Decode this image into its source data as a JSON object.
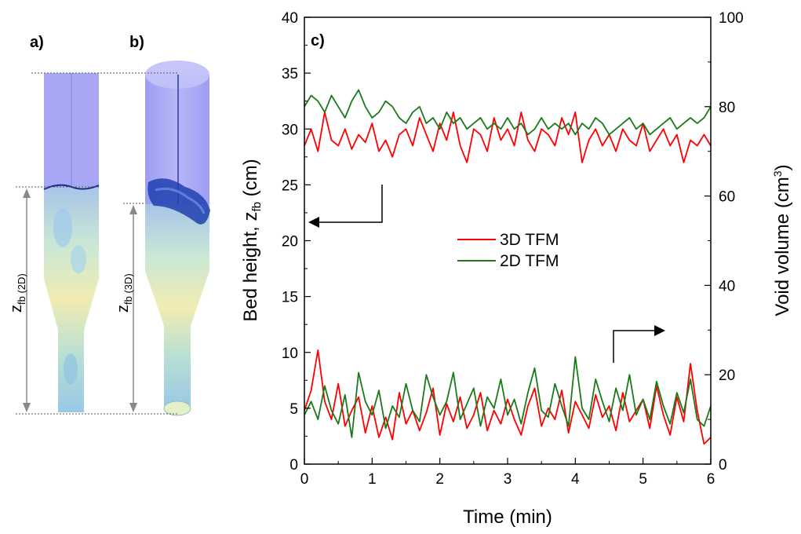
{
  "panels": {
    "a_label": "a)",
    "b_label": "b)",
    "c_label": "c)",
    "zfb_2d_main": "z",
    "zfb_2d_sub": "fb (2D)",
    "zfb_3d_main": "z",
    "zfb_3d_sub": "fb (3D)"
  },
  "chart_data": {
    "type": "line",
    "x_label": "Time  (min)",
    "y_left_label": "Bed height, z",
    "y_left_label_sub": "fb",
    "y_left_label_unit": " (cm)",
    "y_right_label": "Void volume (cm",
    "y_right_label_sup": "3",
    "y_right_label_end": ")",
    "xlim": [
      0,
      6
    ],
    "ylim_left": [
      0,
      40
    ],
    "ylim_right": [
      0,
      100
    ],
    "x_ticks": [
      "0",
      "1",
      "2",
      "3",
      "4",
      "5",
      "6"
    ],
    "y_left_ticks": [
      "0",
      "5",
      "10",
      "15",
      "20",
      "25",
      "30",
      "35",
      "40"
    ],
    "y_right_ticks": [
      "0",
      "20",
      "40",
      "60",
      "80",
      "100"
    ],
    "legend": [
      "3D TFM",
      "2D TFM"
    ],
    "colors": {
      "3D TFM": "#ff0000",
      "2D TFM": "#1a7a1a"
    },
    "series": [
      {
        "name": "3D TFM",
        "axis": "left",
        "group": "bed_height",
        "x": [
          0.0,
          0.1,
          0.2,
          0.3,
          0.4,
          0.5,
          0.6,
          0.7,
          0.8,
          0.9,
          1.0,
          1.1,
          1.2,
          1.3,
          1.4,
          1.5,
          1.6,
          1.7,
          1.8,
          1.9,
          2.0,
          2.1,
          2.2,
          2.3,
          2.4,
          2.5,
          2.6,
          2.7,
          2.8,
          2.9,
          3.0,
          3.1,
          3.2,
          3.3,
          3.4,
          3.5,
          3.6,
          3.7,
          3.8,
          3.9,
          4.0,
          4.1,
          4.2,
          4.3,
          4.4,
          4.5,
          4.6,
          4.7,
          4.8,
          4.9,
          5.0,
          5.1,
          5.2,
          5.3,
          5.4,
          5.5,
          5.6,
          5.7,
          5.8,
          5.9,
          6.0
        ],
        "values": [
          28.5,
          30.0,
          28.0,
          31.5,
          29.0,
          28.5,
          30.0,
          28.2,
          29.5,
          28.8,
          30.5,
          28.0,
          29.0,
          27.5,
          29.5,
          30.0,
          28.5,
          31.0,
          29.5,
          28.0,
          30.5,
          29.0,
          31.5,
          28.5,
          27.0,
          30.0,
          29.5,
          28.0,
          31.0,
          29.0,
          30.0,
          28.5,
          31.5,
          29.0,
          28.0,
          30.0,
          29.5,
          28.5,
          31.0,
          29.5,
          31.5,
          27.0,
          29.0,
          30.0,
          28.5,
          29.5,
          28.0,
          30.0,
          29.0,
          28.5,
          30.5,
          28.0,
          29.0,
          30.0,
          28.5,
          29.5,
          27.0,
          29.0,
          28.5,
          29.5,
          28.5
        ]
      },
      {
        "name": "2D TFM",
        "axis": "left",
        "group": "bed_height",
        "x": [
          0.0,
          0.1,
          0.2,
          0.3,
          0.4,
          0.5,
          0.6,
          0.7,
          0.8,
          0.9,
          1.0,
          1.1,
          1.2,
          1.3,
          1.4,
          1.5,
          1.6,
          1.7,
          1.8,
          1.9,
          2.0,
          2.1,
          2.2,
          2.3,
          2.4,
          2.5,
          2.6,
          2.7,
          2.8,
          2.9,
          3.0,
          3.1,
          3.2,
          3.3,
          3.4,
          3.5,
          3.6,
          3.7,
          3.8,
          3.9,
          4.0,
          4.1,
          4.2,
          4.3,
          4.4,
          4.5,
          4.6,
          4.7,
          4.8,
          4.9,
          5.0,
          5.1,
          5.2,
          5.3,
          5.4,
          5.5,
          5.6,
          5.7,
          5.8,
          5.9,
          6.0
        ],
        "values": [
          32.0,
          33.0,
          32.5,
          31.5,
          33.0,
          32.0,
          31.0,
          32.5,
          33.5,
          32.0,
          31.0,
          31.5,
          32.5,
          32.0,
          31.0,
          30.5,
          31.5,
          32.0,
          30.5,
          31.0,
          30.0,
          31.5,
          30.5,
          31.0,
          30.0,
          30.5,
          31.0,
          30.0,
          30.5,
          30.0,
          31.0,
          30.0,
          30.5,
          29.5,
          30.0,
          31.0,
          30.0,
          30.5,
          30.0,
          30.5,
          29.5,
          30.5,
          30.0,
          31.0,
          30.5,
          29.5,
          30.0,
          30.5,
          31.0,
          30.0,
          30.5,
          29.5,
          30.0,
          30.5,
          31.0,
          30.0,
          30.5,
          31.0,
          30.5,
          31.0,
          32.0
        ]
      },
      {
        "name": "3D TFM",
        "axis": "right",
        "group": "void_volume",
        "x": [
          0.0,
          0.1,
          0.2,
          0.3,
          0.4,
          0.5,
          0.6,
          0.7,
          0.8,
          0.9,
          1.0,
          1.1,
          1.2,
          1.3,
          1.4,
          1.5,
          1.6,
          1.7,
          1.8,
          1.9,
          2.0,
          2.1,
          2.2,
          2.3,
          2.4,
          2.5,
          2.6,
          2.7,
          2.8,
          2.9,
          3.0,
          3.1,
          3.2,
          3.3,
          3.4,
          3.5,
          3.6,
          3.7,
          3.8,
          3.9,
          4.0,
          4.1,
          4.2,
          4.3,
          4.4,
          4.5,
          4.6,
          4.7,
          4.8,
          4.9,
          5.0,
          5.1,
          5.2,
          5.3,
          5.4,
          5.5,
          5.6,
          5.7,
          5.8,
          5.9,
          6.0
        ],
        "values": [
          12.0,
          16.5,
          25.5,
          14.0,
          10.0,
          18.0,
          8.5,
          12.0,
          15.0,
          7.0,
          13.0,
          6.0,
          10.5,
          5.5,
          16.0,
          9.0,
          12.0,
          7.5,
          11.5,
          17.0,
          6.5,
          13.5,
          9.5,
          15.0,
          8.0,
          11.0,
          16.0,
          7.5,
          12.0,
          9.0,
          14.5,
          10.0,
          6.5,
          13.0,
          17.0,
          8.5,
          12.5,
          10.0,
          16.5,
          7.0,
          14.0,
          11.0,
          8.0,
          15.5,
          10.5,
          13.0,
          7.5,
          16.0,
          9.5,
          12.0,
          14.5,
          8.0,
          17.5,
          11.0,
          6.5,
          15.0,
          9.5,
          22.5,
          12.0,
          4.5,
          6.0
        ]
      },
      {
        "name": "2D TFM",
        "axis": "right",
        "group": "void_volume",
        "x": [
          0.0,
          0.1,
          0.2,
          0.3,
          0.4,
          0.5,
          0.6,
          0.7,
          0.8,
          0.9,
          1.0,
          1.1,
          1.2,
          1.3,
          1.4,
          1.5,
          1.6,
          1.7,
          1.8,
          1.9,
          2.0,
          2.1,
          2.2,
          2.3,
          2.4,
          2.5,
          2.6,
          2.7,
          2.8,
          2.9,
          3.0,
          3.1,
          3.2,
          3.3,
          3.4,
          3.5,
          3.6,
          3.7,
          3.8,
          3.9,
          4.0,
          4.1,
          4.2,
          4.3,
          4.4,
          4.5,
          4.6,
          4.7,
          4.8,
          4.9,
          5.0,
          5.1,
          5.2,
          5.3,
          5.4,
          5.5,
          5.6,
          5.7,
          5.8,
          5.9,
          6.0
        ],
        "values": [
          11.0,
          14.0,
          10.0,
          17.5,
          12.0,
          9.0,
          15.5,
          6.0,
          20.5,
          14.0,
          11.0,
          16.5,
          8.0,
          13.0,
          10.5,
          18.0,
          12.0,
          9.5,
          20.0,
          15.0,
          11.0,
          14.0,
          20.5,
          10.0,
          13.5,
          17.0,
          8.5,
          15.0,
          12.5,
          19.0,
          11.0,
          14.5,
          9.0,
          16.0,
          21.5,
          12.0,
          10.5,
          18.0,
          13.0,
          8.5,
          24.0,
          12.5,
          10.0,
          19.0,
          14.0,
          9.5,
          17.0,
          12.0,
          20.0,
          11.0,
          14.5,
          10.0,
          18.5,
          13.0,
          9.0,
          16.0,
          11.5,
          19.0,
          10.0,
          8.5,
          13.0
        ]
      }
    ],
    "annotations": [
      {
        "type": "arrow",
        "points_to": "left axis"
      },
      {
        "type": "arrow",
        "points_to": "right axis"
      }
    ]
  }
}
